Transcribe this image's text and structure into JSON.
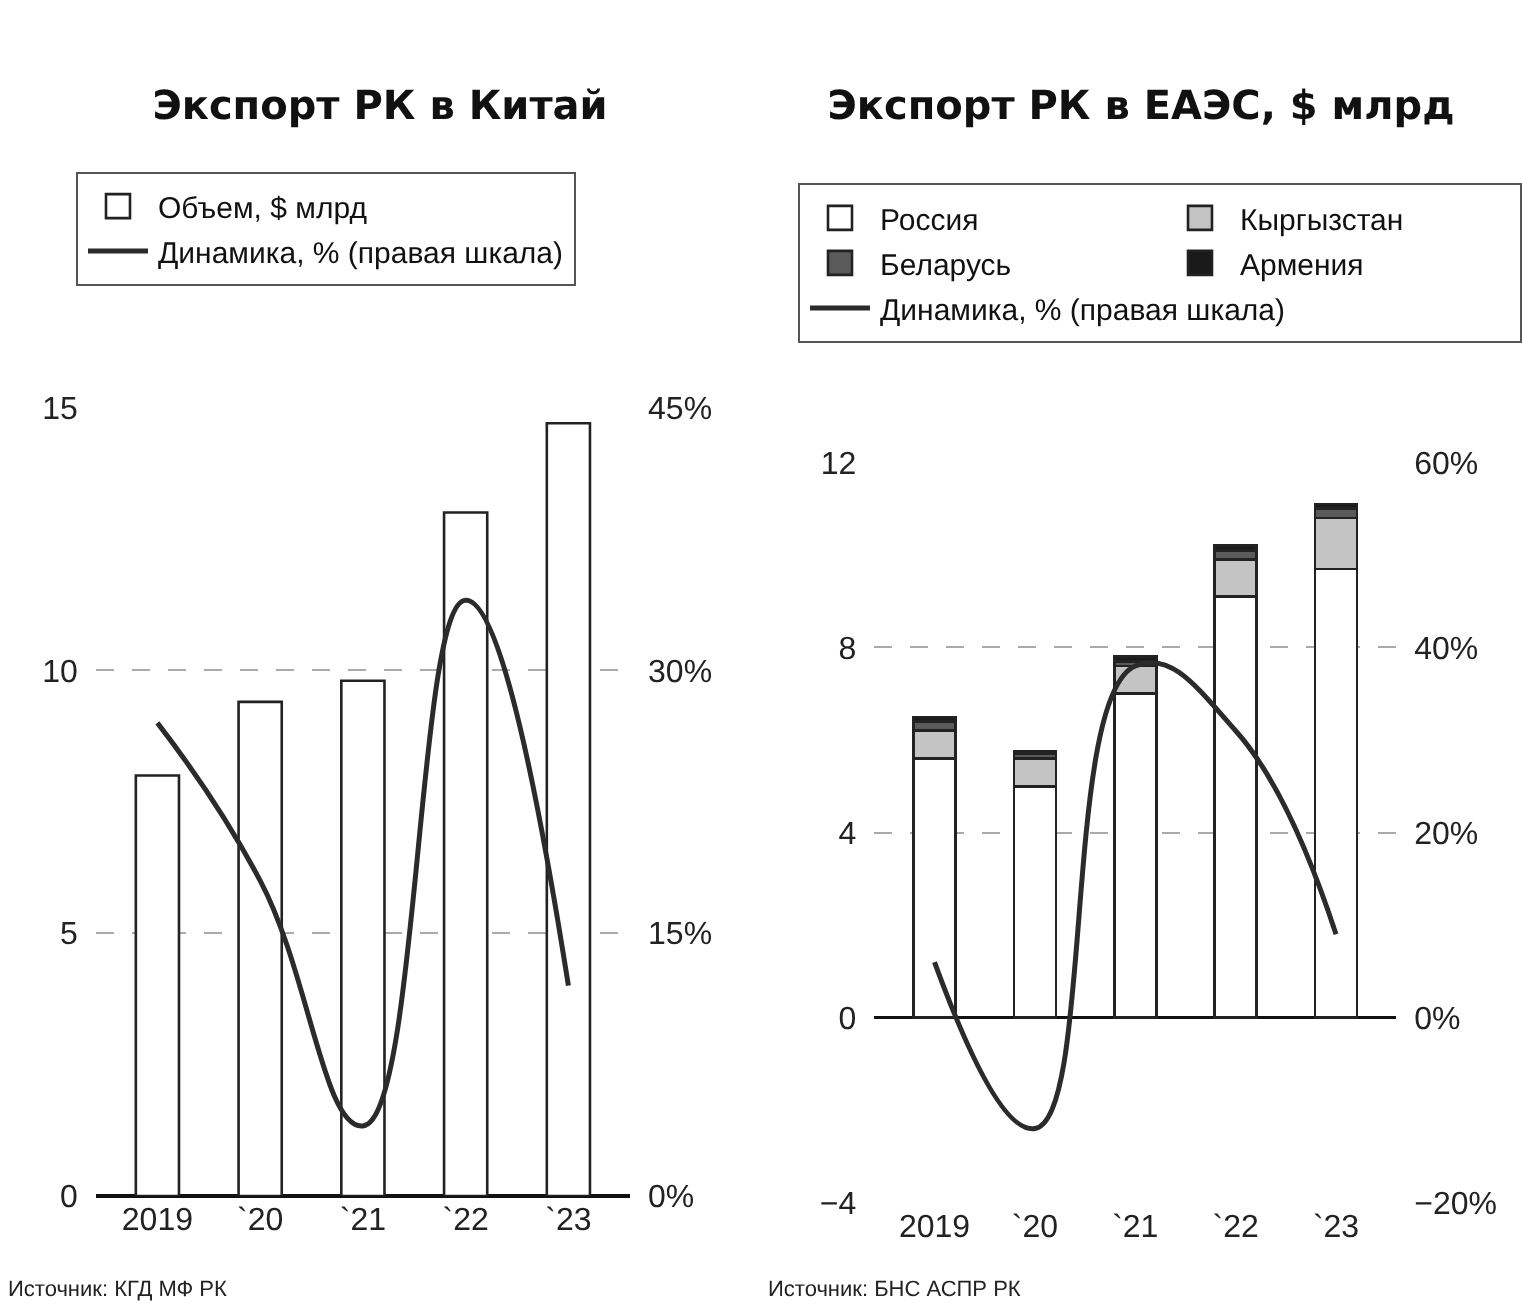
{
  "chart_data": [
    {
      "type": "bar",
      "title": "Экспорт РК в Китай",
      "categories": [
        "2019",
        "`20",
        "`21",
        "`22",
        "`23"
      ],
      "series": [
        {
          "name": "Объем, $ млрд",
          "color": "#ffffff",
          "values": [
            8.0,
            9.4,
            9.8,
            13.0,
            14.7
          ]
        },
        {
          "name": "Динамика, % (правая шкала)",
          "type": "line",
          "axis": "y2",
          "color": "#2b2b2b",
          "values": [
            27,
            18,
            4,
            34,
            12
          ]
        }
      ],
      "ylim": [
        0,
        15
      ],
      "yticks": [
        0,
        5,
        10,
        15
      ],
      "y2lim": [
        0,
        45
      ],
      "y2ticks": [
        {
          "value": 0,
          "label": "0%"
        },
        {
          "value": 15,
          "label": "15%"
        },
        {
          "value": 30,
          "label": "30%"
        },
        {
          "value": 45,
          "label": "45%"
        }
      ],
      "grid": "y",
      "legend": "top",
      "annotations": [
        "Источник: КГД МФ РК"
      ]
    },
    {
      "type": "bar",
      "title": "Экспорт РК в ЕАЭС, $ млрд",
      "categories": [
        "2019",
        "`20",
        "`21",
        "`22",
        "`23"
      ],
      "stacked": true,
      "series": [
        {
          "name": "Россия",
          "color": "#ffffff",
          "values": [
            5.6,
            5.0,
            7.0,
            9.1,
            9.7
          ]
        },
        {
          "name": "Кыргызстан",
          "color": "#c4c4c4",
          "values": [
            0.6,
            0.6,
            0.6,
            0.8,
            1.1
          ]
        },
        {
          "name": "Беларусь",
          "color": "#5a5a5a",
          "values": [
            0.2,
            0.1,
            0.1,
            0.2,
            0.2
          ]
        },
        {
          "name": "Армения",
          "color": "#1a1a1a",
          "values": [
            0.1,
            0.05,
            0.1,
            0.1,
            0.1
          ]
        },
        {
          "name": "Динамика, % (правая шкала)",
          "type": "line",
          "axis": "y2",
          "color": "#2b2b2b",
          "values": [
            6,
            -12,
            38,
            31,
            9
          ]
        }
      ],
      "ylim": [
        -4,
        12
      ],
      "yticks": [
        {
          "value": -4,
          "label": "−4"
        },
        0,
        4,
        8,
        12
      ],
      "y2lim": [
        -20,
        60
      ],
      "y2ticks": [
        {
          "value": -20,
          "label": "−20%"
        },
        {
          "value": 0,
          "label": "0%"
        },
        {
          "value": 20,
          "label": "20%"
        },
        {
          "value": 40,
          "label": "40%"
        },
        {
          "value": 60,
          "label": "60%"
        }
      ],
      "grid": "y",
      "legend": "top",
      "annotations": [
        "Источник: БНС АСПР РК"
      ]
    }
  ]
}
